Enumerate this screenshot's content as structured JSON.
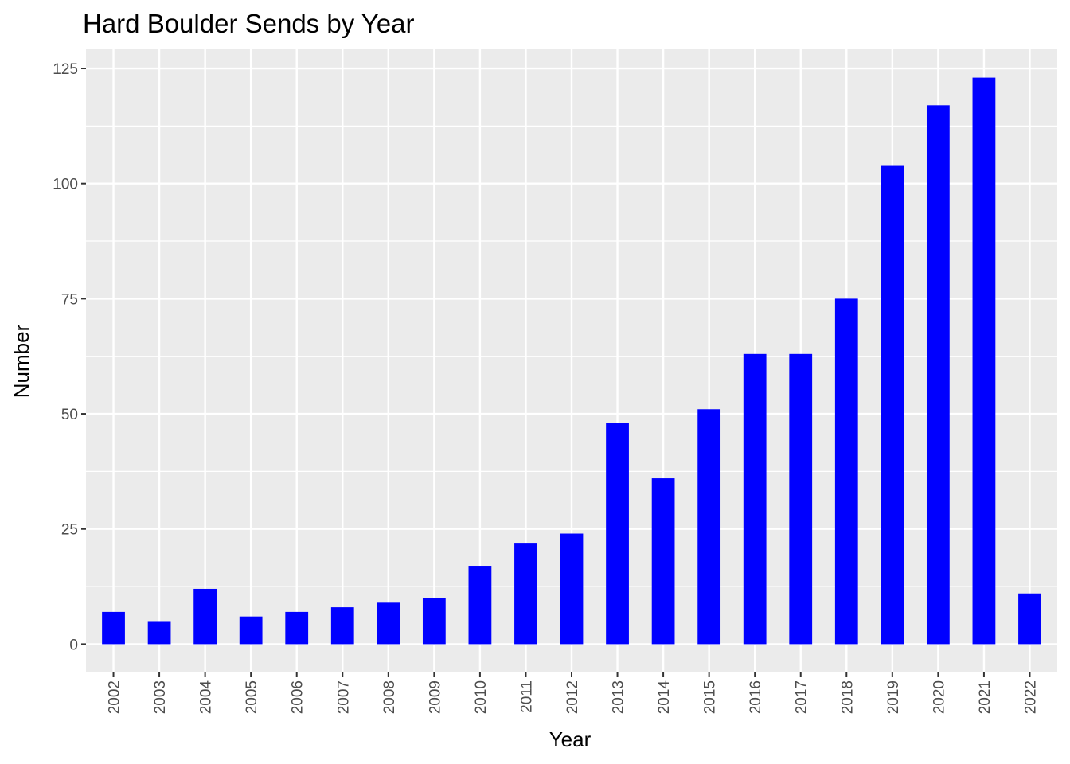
{
  "chart_data": {
    "type": "bar",
    "title": "Hard Boulder Sends by Year",
    "xlabel": "Year",
    "ylabel": "Number",
    "categories": [
      "2002",
      "2003",
      "2004",
      "2005",
      "2006",
      "2007",
      "2008",
      "2009",
      "2010",
      "2011",
      "2012",
      "2013",
      "2014",
      "2015",
      "2016",
      "2017",
      "2018",
      "2019",
      "2020",
      "2021",
      "2022"
    ],
    "values": [
      7,
      5,
      12,
      6,
      7,
      8,
      9,
      10,
      17,
      22,
      24,
      48,
      36,
      51,
      63,
      63,
      75,
      104,
      117,
      123,
      11
    ],
    "ylim": [
      -6.15,
      129.15
    ],
    "yticks": [
      0,
      25,
      50,
      75,
      100,
      125
    ],
    "grid": true,
    "legend": "none",
    "bar_color": "#0000FF",
    "panel_background": "#EBEBEB",
    "grid_color": "#FFFFFF"
  }
}
